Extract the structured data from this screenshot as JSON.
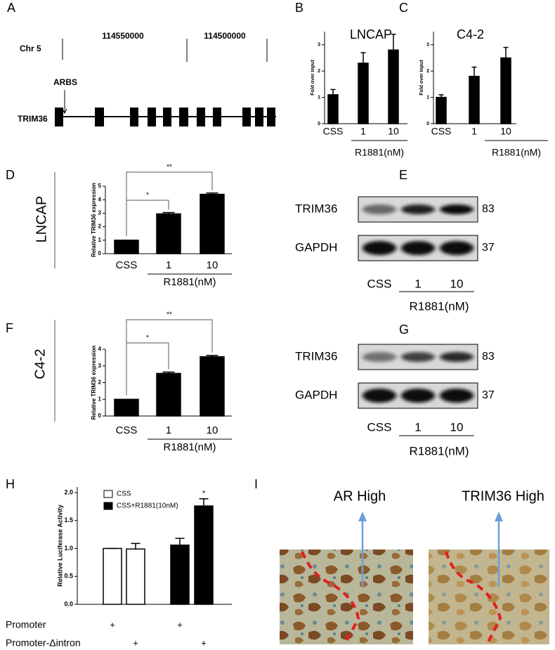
{
  "panel_letters": [
    "A",
    "B",
    "C",
    "D",
    "E",
    "F",
    "G",
    "H",
    "I"
  ],
  "gene_diagram": {
    "chromosome": "Chr 5",
    "positions": [
      "114550000",
      "114500000"
    ],
    "site": "ARBS",
    "gene": "TRIM36"
  },
  "chart_data": [
    {
      "type": "bar",
      "title": "LNCAP",
      "y_label": "Fold over input",
      "categories": [
        "CSS",
        "1",
        "10"
      ],
      "group_label": "R1881(nM)",
      "values": [
        1.1,
        2.3,
        2.8
      ],
      "errors": [
        0.2,
        0.4,
        0.6
      ],
      "color": "#000000",
      "ylim": [
        0,
        3.5
      ],
      "yticks": [
        0,
        1,
        2,
        3
      ]
    },
    {
      "type": "bar",
      "title": "C4-2",
      "y_label": "Fold over input",
      "categories": [
        "CSS",
        "1",
        "10"
      ],
      "group_label": "R1881(nM)",
      "values": [
        1.0,
        1.8,
        2.5
      ],
      "errors": [
        0.1,
        0.35,
        0.4
      ],
      "color": "#000000",
      "ylim": [
        0,
        3.5
      ],
      "yticks": [
        0,
        1,
        2,
        3
      ]
    },
    {
      "type": "bar",
      "cell_line": "LNCAP",
      "y_label": "Relative TRIM36 expression",
      "categories": [
        "CSS",
        "1",
        "10"
      ],
      "group_label": "R1881(nM)",
      "values": [
        1,
        2.95,
        4.4
      ],
      "errors": [
        0,
        0.1,
        0.1
      ],
      "color": "#000000",
      "ylim": [
        0,
        5
      ],
      "yticks": [
        0,
        1,
        2,
        3,
        4,
        5
      ],
      "annotations": [
        "*",
        "**"
      ]
    },
    {
      "type": "bar",
      "cell_line": "C4-2",
      "y_label": "Relative TRIM36 expression",
      "categories": [
        "CSS",
        "1",
        "10"
      ],
      "group_label": "R1881(nM)",
      "values": [
        1,
        2.55,
        3.55
      ],
      "errors": [
        0,
        0.08,
        0.08
      ],
      "color": "#000000",
      "ylim": [
        0,
        4
      ],
      "yticks": [
        0,
        1,
        2,
        3,
        4
      ],
      "annotations": [
        "*",
        "**"
      ]
    },
    {
      "type": "grouped_bar",
      "y_label": "Relative Luciferase Activity",
      "categories": [
        null,
        null,
        null,
        null
      ],
      "series": [
        {
          "name": "CSS",
          "color": "#ffffff",
          "values": [
            1.0,
            0.99,
            null,
            null
          ],
          "errors": [
            0,
            0.1,
            null,
            null
          ]
        },
        {
          "name": "CSS+R1881(10nM)",
          "color": "#000000",
          "values": [
            null,
            null,
            1.06,
            1.76
          ],
          "errors": [
            null,
            null,
            0.12,
            0.13
          ]
        }
      ],
      "ylim": [
        0,
        2.1
      ],
      "yticks": [
        {
          "value": 0,
          "label": "0.0"
        },
        0.5,
        {
          "value": 1,
          "label": "1.0"
        },
        1.5,
        {
          "value": 2,
          "label": "2.0"
        }
      ],
      "annotations": [
        "*"
      ],
      "conditions": [
        {
          "label": "Promoter",
          "marks": [
            "+",
            null,
            "+",
            null
          ]
        },
        {
          "label": "Promoter-Δintron",
          "marks": [
            null,
            "+",
            null,
            "+"
          ]
        }
      ]
    }
  ],
  "blots": [
    {
      "rows": [
        {
          "protein": "TRIM36",
          "size": "83"
        },
        {
          "protein": "GAPDH",
          "size": "37"
        }
      ],
      "lanes": [
        "CSS",
        "1",
        "10"
      ],
      "group_label": "R1881(nM)"
    },
    {
      "rows": [
        {
          "protein": "TRIM36",
          "size": "83"
        },
        {
          "protein": "GAPDH",
          "size": "37"
        }
      ],
      "lanes": [
        "CSS",
        "1",
        "10"
      ],
      "group_label": "R1881(nM)"
    }
  ],
  "histology": {
    "labels": [
      "AR High",
      "TRIM36 High"
    ]
  }
}
